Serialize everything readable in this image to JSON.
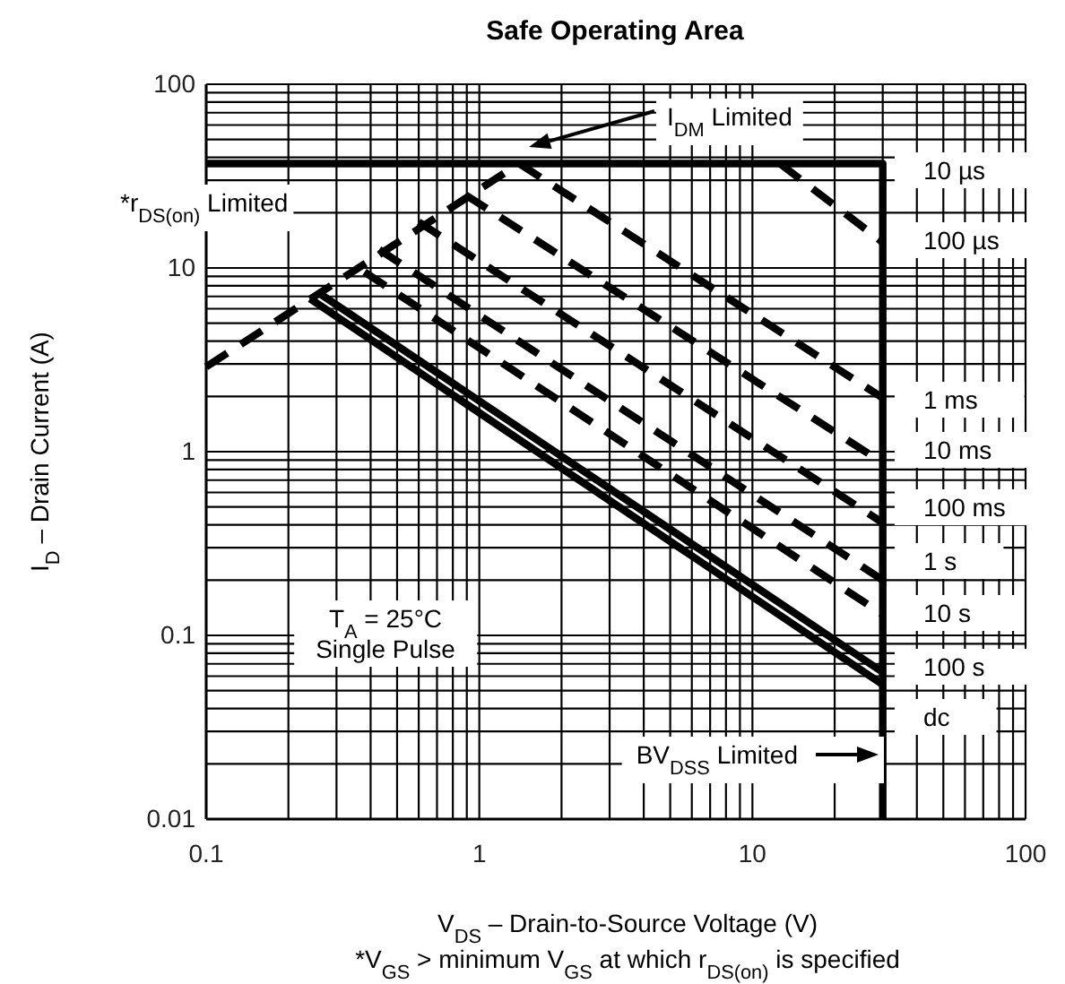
{
  "chart_data": {
    "type": "line",
    "title": "Safe Operating Area",
    "xlabel": "V$_{DS}$  –  Drain-to-Source Voltage (V)",
    "ylabel": "I$_{D}$ – Drain Current (A)",
    "log": "xy",
    "grid": true,
    "xlim": [
      0.1,
      100
    ],
    "ylim": [
      0.01,
      100
    ],
    "xticks": [
      0.1,
      1,
      10,
      100
    ],
    "yticks": [
      0.01,
      0.1,
      1,
      10,
      100
    ],
    "series": [
      {
        "color": "#000000",
        "line_style": "dashed",
        "x": [
          0.1,
          1.4
        ],
        "values": [
          2.9,
          37
        ]
      },
      {
        "color": "#000000",
        "line_style": "solid",
        "x": [
          0.1,
          30,
          30
        ],
        "values": [
          37,
          37,
          0.01
        ]
      },
      {
        "color": "#000000",
        "line_style": "dashed",
        "x": [
          12.6,
          30
        ],
        "values": [
          37,
          13.8
        ]
      },
      {
        "color": "#000000",
        "line_style": "dashed",
        "x": [
          1.4,
          30
        ],
        "values": [
          37,
          1.96
        ]
      },
      {
        "color": "#000000",
        "line_style": "dashed",
        "x": [
          0.89,
          30
        ],
        "values": [
          25,
          0.87
        ]
      },
      {
        "color": "#000000",
        "line_style": "dashed",
        "x": [
          0.6,
          30
        ],
        "values": [
          17.8,
          0.41
        ]
      },
      {
        "color": "#000000",
        "line_style": "dashed",
        "x": [
          0.43,
          30
        ],
        "values": [
          12.6,
          0.2
        ]
      },
      {
        "color": "#000000",
        "line_style": "dashed",
        "x": [
          0.38,
          30
        ],
        "values": [
          9.5,
          0.13
        ]
      },
      {
        "color": "#000000",
        "line_style": "solid",
        "x": [
          0.255,
          30
        ],
        "values": [
          7.4,
          0.063
        ]
      },
      {
        "color": "#000000",
        "line_style": "solid",
        "x": [
          0.24,
          30
        ],
        "values": [
          6.8,
          0.054
        ]
      }
    ],
    "annotations": [
      "*r$_{DS(on)}$ Limited",
      "I$_{DM}$ Limited",
      "10 µs",
      "100 µs",
      "1 ms",
      "10 ms",
      "100 ms",
      "1 s",
      "10 s",
      "100 s",
      "dc",
      "BV$_{DSS}$ Limited",
      "T$_{A}$ = 25°C\nSingle Pulse",
      "*V$_{GS}$ > minimum V$_{GS}$ at which r$_{DS(on)}$ is specified"
    ]
  }
}
